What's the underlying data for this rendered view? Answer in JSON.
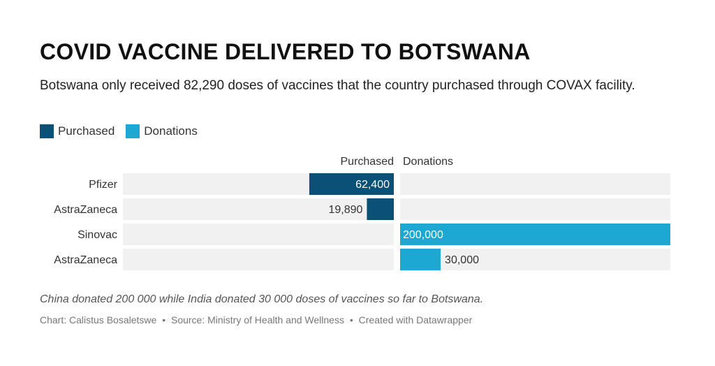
{
  "title": "COVID VACCINE DELIVERED TO BOTSWANA",
  "subtitle": "Botswana only received 82,290 doses of vaccines that the country purchased through COVAX facility.",
  "legend": [
    {
      "label": "Purchased",
      "color": "#0b5077"
    },
    {
      "label": "Donations",
      "color": "#1da8d3"
    }
  ],
  "chart_data": {
    "type": "bar",
    "orientation": "horizontal-split",
    "categories": [
      "Pfizer",
      "AstraZaneca",
      "Sinovac",
      "AstraZaneca"
    ],
    "series": [
      {
        "name": "Purchased",
        "color": "#0b5077",
        "values": [
          62400,
          19890,
          null,
          null
        ],
        "labels": [
          "62,400",
          "19,890",
          "",
          ""
        ]
      },
      {
        "name": "Donations",
        "color": "#1da8d3",
        "values": [
          null,
          null,
          200000,
          30000
        ],
        "labels": [
          "",
          "",
          "200,000",
          "30,000"
        ]
      }
    ],
    "xlim": [
      0,
      200000
    ],
    "track_color": "#f1f1f1",
    "legend_position": "top-left"
  },
  "notes": "China donated 200 000 while India donated 30 000 doses of vaccines so far to Botswana.",
  "byline": {
    "chart": "Chart: Calistus Bosaletswe",
    "source": "Source: Ministry of Health and Wellness",
    "created": "Created with Datawrapper",
    "separator": "•"
  }
}
